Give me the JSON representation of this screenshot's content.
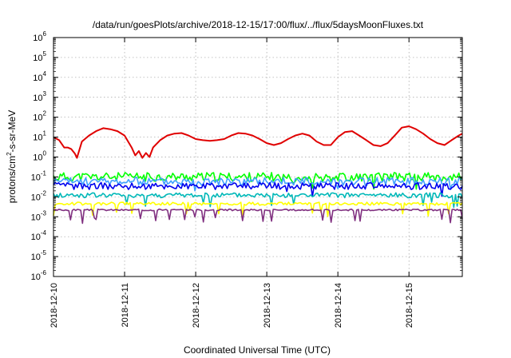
{
  "chart_data": {
    "type": "line",
    "title": "/data/run/goesPlots/archive/2018-12-15/17:00/flux/../flux/5daysMoonFluxes.txt",
    "xlabel": "Coordinated Universal Time (UTC)",
    "ylabel": "protons/cm2-s-sr-MeV",
    "ylabel_parts": {
      "prefix": "protons/cm",
      "sup": "2",
      "suffix": "-s-sr-MeV"
    },
    "yscale": "log",
    "ylim": [
      1e-06,
      1000000.0
    ],
    "y_ticks": [
      {
        "base": "10",
        "exp": "6"
      },
      {
        "base": "10",
        "exp": "5"
      },
      {
        "base": "10",
        "exp": "4"
      },
      {
        "base": "10",
        "exp": "3"
      },
      {
        "base": "10",
        "exp": "2"
      },
      {
        "base": "10",
        "exp": "1"
      },
      {
        "base": "10",
        "exp": "0"
      },
      {
        "base": "10",
        "exp": "-1"
      },
      {
        "base": "10",
        "exp": "-2"
      },
      {
        "base": "10",
        "exp": "-3"
      },
      {
        "base": "10",
        "exp": "-4"
      },
      {
        "base": "10",
        "exp": "-5"
      },
      {
        "base": "10",
        "exp": "-6"
      }
    ],
    "xlim_days": [
      0,
      5.75
    ],
    "x_ticks": [
      "2018-12-10",
      "2018-12-11",
      "2018-12-12",
      "2018-12-13",
      "2018-12-14",
      "2018-12-15"
    ],
    "grid": true,
    "legend": "none",
    "series": [
      {
        "color": "#e00000",
        "x": [
          0,
          0.08,
          0.15,
          0.2,
          0.25,
          0.3,
          0.33,
          0.4,
          0.5,
          0.6,
          0.7,
          0.8,
          0.9,
          1.0,
          1.1,
          1.15,
          1.2,
          1.25,
          1.3,
          1.35,
          1.4,
          1.5,
          1.6,
          1.7,
          1.8,
          1.9,
          2.0,
          2.1,
          2.2,
          2.3,
          2.4,
          2.5,
          2.6,
          2.7,
          2.8,
          2.9,
          3.0,
          3.1,
          3.2,
          3.3,
          3.4,
          3.5,
          3.6,
          3.7,
          3.8,
          3.9,
          4.0,
          4.1,
          4.2,
          4.3,
          4.4,
          4.5,
          4.6,
          4.7,
          4.8,
          4.9,
          5.0,
          5.1,
          5.2,
          5.3,
          5.4,
          5.5,
          5.6,
          5.7,
          5.75
        ],
        "y": [
          10,
          7,
          3,
          3,
          2.5,
          1.5,
          0.9,
          6,
          12,
          20,
          28,
          25,
          20,
          12,
          3,
          1.2,
          2,
          0.9,
          1.6,
          1,
          3,
          7,
          12,
          15,
          16,
          12,
          8,
          7,
          6.5,
          7,
          8,
          12,
          16,
          15,
          12,
          8,
          5,
          4,
          5,
          8,
          12,
          15,
          12,
          6,
          4,
          4,
          10,
          18,
          20,
          12,
          7,
          4,
          3.5,
          5,
          12,
          30,
          35,
          25,
          15,
          8,
          5,
          4,
          7,
          12,
          15
        ]
      },
      {
        "color": "#00ff00",
        "base": 0.1,
        "seed": 11,
        "amp": 0.45,
        "dips": 0.18
      },
      {
        "color": "#3fa0ff",
        "base": 0.06,
        "seed": 23,
        "amp": 0.4,
        "dips": 0.2
      },
      {
        "color": "#0000ee",
        "base": 0.035,
        "seed": 37,
        "amp": 0.35,
        "dips": 0.2
      },
      {
        "color": "#00b8b8",
        "base": 0.012,
        "seed": 41,
        "amp": 0.25,
        "dips": 0.3
      },
      {
        "color": "#ffff00",
        "base": 0.0045,
        "seed": 53,
        "amp": 0.15,
        "dips": 0.35
      },
      {
        "color": "#803080",
        "base": 0.0022,
        "seed": 67,
        "amp": 0.08,
        "dips": 0.45
      }
    ]
  }
}
